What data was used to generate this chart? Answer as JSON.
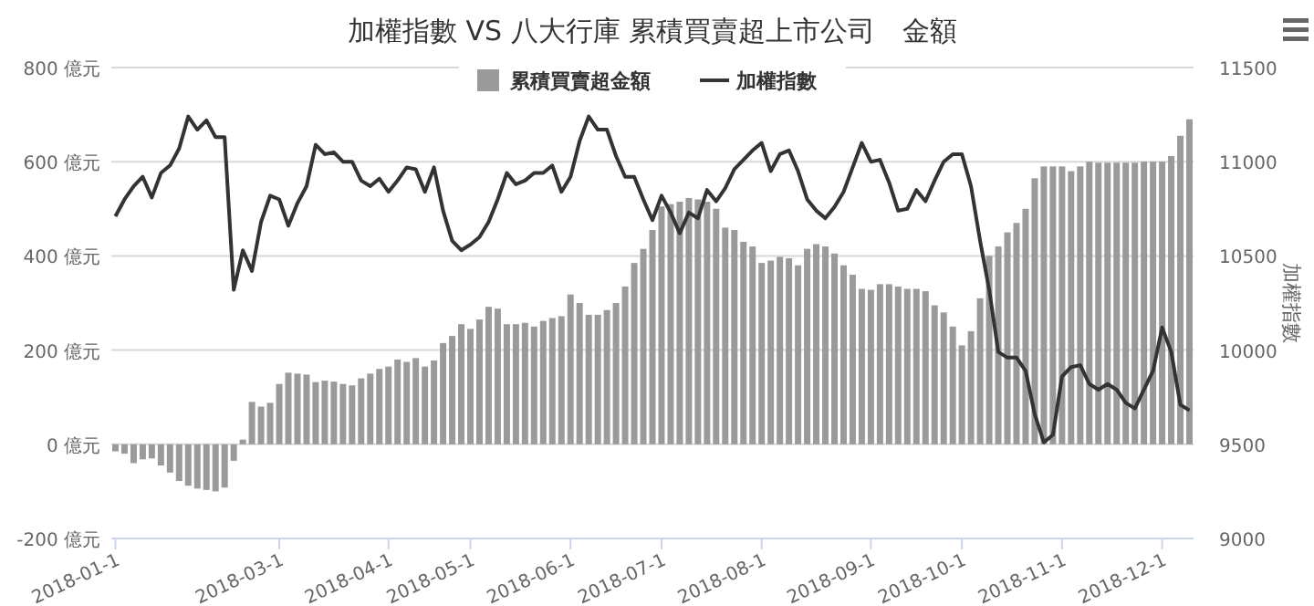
{
  "chart_data": {
    "type": "bar",
    "title": "加權指數 VS 八大行庫 累積買賣超上市公司　金額",
    "y2label": "加權指數",
    "categories": [
      "2018-01-1",
      null,
      null,
      null,
      null,
      null,
      null,
      null,
      null,
      null,
      null,
      null,
      null,
      null,
      null,
      null,
      null,
      null,
      "2018-03-1",
      null,
      null,
      null,
      null,
      null,
      null,
      null,
      null,
      null,
      null,
      null,
      "2018-04-1",
      null,
      null,
      null,
      null,
      null,
      null,
      null,
      null,
      "2018-05-1",
      null,
      null,
      null,
      null,
      null,
      null,
      null,
      null,
      null,
      null,
      "2018-06-1",
      null,
      null,
      null,
      null,
      null,
      null,
      null,
      null,
      null,
      "2018-07-1",
      null,
      null,
      null,
      null,
      null,
      null,
      null,
      null,
      null,
      null,
      "2018-08-1",
      null,
      null,
      null,
      null,
      null,
      null,
      null,
      null,
      null,
      null,
      null,
      "2018-09-1",
      null,
      null,
      null,
      null,
      null,
      null,
      null,
      null,
      null,
      "2018-10-1",
      null,
      null,
      null,
      null,
      null,
      null,
      null,
      null,
      null,
      null,
      "2018-11-1",
      null,
      null,
      null,
      null,
      null,
      null,
      null,
      null,
      null,
      null,
      "2018-12-1",
      null,
      null,
      null
    ],
    "series": [
      {
        "name": "累積買賣超金額",
        "color": "#9a9a9a",
        "values": [
          -15,
          -20,
          -40,
          -32,
          -30,
          -45,
          -60,
          -78,
          -88,
          -94,
          -97,
          -100,
          -92,
          -35,
          10,
          90,
          80,
          88,
          128,
          152,
          150,
          148,
          132,
          135,
          133,
          128,
          125,
          140,
          150,
          160,
          165,
          180,
          175,
          183,
          165,
          178,
          215,
          230,
          255,
          245,
          265,
          292,
          288,
          255,
          255,
          258,
          250,
          262,
          268,
          272,
          318,
          300,
          275,
          275,
          285,
          300,
          335,
          385,
          415,
          455,
          505,
          510,
          515,
          523,
          520,
          515,
          500,
          460,
          455,
          430,
          420,
          385,
          390,
          398,
          395,
          380,
          415,
          425,
          420,
          405,
          380,
          360,
          330,
          328,
          340,
          340,
          335,
          330,
          330,
          325,
          295,
          280,
          250,
          210,
          240,
          310,
          400,
          420,
          450,
          470,
          500,
          565,
          590,
          590,
          590,
          580,
          590,
          600,
          598,
          598,
          598,
          598,
          598,
          600,
          600,
          600,
          612,
          655,
          690
        ]
      },
      {
        "name": "加權指數",
        "type": "line",
        "axis": "y2",
        "color": "#333333",
        "values": [
          10710,
          10800,
          10870,
          10920,
          10810,
          10940,
          10980,
          11070,
          11240,
          11170,
          11220,
          11130,
          11130,
          10320,
          10530,
          10420,
          10680,
          10820,
          10800,
          10660,
          10780,
          10870,
          11090,
          11040,
          11050,
          11000,
          11000,
          10900,
          10870,
          10910,
          10840,
          10900,
          10970,
          10960,
          10840,
          10970,
          10740,
          10580,
          10530,
          10560,
          10600,
          10680,
          10800,
          10940,
          10880,
          10900,
          10940,
          10940,
          10980,
          10840,
          10920,
          11110,
          11240,
          11170,
          11170,
          11030,
          10920,
          10920,
          10800,
          10690,
          10820,
          10730,
          10620,
          10730,
          10700,
          10850,
          10790,
          10860,
          10960,
          11010,
          11060,
          11100,
          10950,
          11040,
          11060,
          10950,
          10800,
          10740,
          10700,
          10760,
          10840,
          10970,
          11100,
          11000,
          11010,
          10890,
          10740,
          10750,
          10850,
          10790,
          10900,
          11000,
          11040,
          11040,
          10870,
          10580,
          10320,
          9990,
          9960,
          9960,
          9890,
          9660,
          9510,
          9550,
          9860,
          9910,
          9920,
          9820,
          9790,
          9820,
          9790,
          9720,
          9690,
          9790,
          9890,
          10120,
          9990,
          9710,
          9680
        ]
      }
    ],
    "ylim": [
      -200,
      800
    ],
    "yticks": [
      {
        "value": -200,
        "label": "-200 億元"
      },
      {
        "value": 0,
        "label": "0 億元"
      },
      {
        "value": 200,
        "label": "200 億元"
      },
      {
        "value": 400,
        "label": "400 億元"
      },
      {
        "value": 600,
        "label": "600 億元"
      },
      {
        "value": 800,
        "label": "800 億元"
      }
    ],
    "y2lim": [
      9000,
      11500
    ],
    "y2ticks": [
      9000,
      9500,
      10000,
      10500,
      11000,
      11500
    ],
    "grid": "y",
    "legend": "top",
    "line_style": "solid",
    "marker": "none"
  }
}
